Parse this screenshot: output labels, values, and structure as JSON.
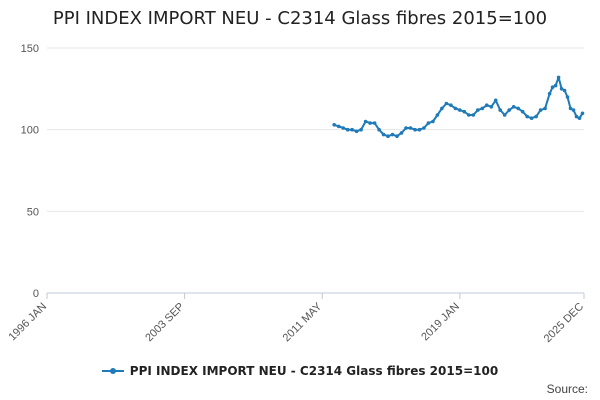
{
  "title": "PPI INDEX IMPORT NEU - C2314 Glass fibres 2015=100",
  "source_label": "Source:",
  "colors": {
    "series": "#1f7ab8",
    "grid": "#e6e6e6",
    "axis": "#c0c8d8",
    "text": "#555555"
  },
  "chart_data": {
    "type": "line",
    "title": "PPI INDEX IMPORT NEU - C2314 Glass fibres 2015=100",
    "xlabel": "",
    "ylabel": "",
    "ylim": [
      0,
      150
    ],
    "yticks": [
      0,
      50,
      100,
      150
    ],
    "xlim": [
      "1996-01",
      "2025-12"
    ],
    "xticks": [
      {
        "date": "1996-01",
        "label": "1996 JAN"
      },
      {
        "date": "2003-09",
        "label": "2003 SEP"
      },
      {
        "date": "2011-05",
        "label": "2011 MAY"
      },
      {
        "date": "2019-01",
        "label": "2019 JAN"
      },
      {
        "date": "2025-12",
        "label": "2025 DEC"
      }
    ],
    "grid": true,
    "legend_position": "bottom",
    "series": [
      {
        "name": "PPI INDEX IMPORT NEU - C2314 Glass fibres 2015=100",
        "points": [
          [
            "2012-01",
            103
          ],
          [
            "2012-04",
            102
          ],
          [
            "2012-07",
            101
          ],
          [
            "2012-10",
            100
          ],
          [
            "2013-01",
            100
          ],
          [
            "2013-04",
            99
          ],
          [
            "2013-07",
            100
          ],
          [
            "2013-10",
            105
          ],
          [
            "2014-01",
            104
          ],
          [
            "2014-04",
            104
          ],
          [
            "2014-07",
            100
          ],
          [
            "2014-10",
            97
          ],
          [
            "2015-01",
            96
          ],
          [
            "2015-04",
            97
          ],
          [
            "2015-07",
            96
          ],
          [
            "2015-10",
            98
          ],
          [
            "2016-01",
            101
          ],
          [
            "2016-04",
            101
          ],
          [
            "2016-07",
            100
          ],
          [
            "2016-10",
            100
          ],
          [
            "2017-01",
            101
          ],
          [
            "2017-04",
            104
          ],
          [
            "2017-07",
            105
          ],
          [
            "2017-10",
            109
          ],
          [
            "2018-01",
            113
          ],
          [
            "2018-04",
            116
          ],
          [
            "2018-07",
            115
          ],
          [
            "2018-10",
            113
          ],
          [
            "2019-01",
            112
          ],
          [
            "2019-04",
            111
          ],
          [
            "2019-07",
            109
          ],
          [
            "2019-10",
            109
          ],
          [
            "2020-01",
            112
          ],
          [
            "2020-04",
            113
          ],
          [
            "2020-07",
            115
          ],
          [
            "2020-10",
            114
          ],
          [
            "2021-01",
            118
          ],
          [
            "2021-04",
            112
          ],
          [
            "2021-07",
            109
          ],
          [
            "2021-10",
            112
          ],
          [
            "2022-01",
            114
          ],
          [
            "2022-04",
            113
          ],
          [
            "2022-07",
            111
          ],
          [
            "2022-10",
            108
          ],
          [
            "2023-01",
            107
          ],
          [
            "2023-04",
            108
          ],
          [
            "2023-07",
            112
          ],
          [
            "2023-10",
            113
          ],
          [
            "2024-01",
            122
          ],
          [
            "2024-03",
            126
          ],
          [
            "2024-05",
            127
          ],
          [
            "2024-07",
            132
          ],
          [
            "2024-09",
            125
          ],
          [
            "2024-11",
            124
          ],
          [
            "2025-01",
            120
          ],
          [
            "2025-03",
            113
          ],
          [
            "2025-05",
            112
          ],
          [
            "2025-07",
            108
          ],
          [
            "2025-09",
            107
          ],
          [
            "2025-11",
            110
          ]
        ]
      }
    ]
  }
}
